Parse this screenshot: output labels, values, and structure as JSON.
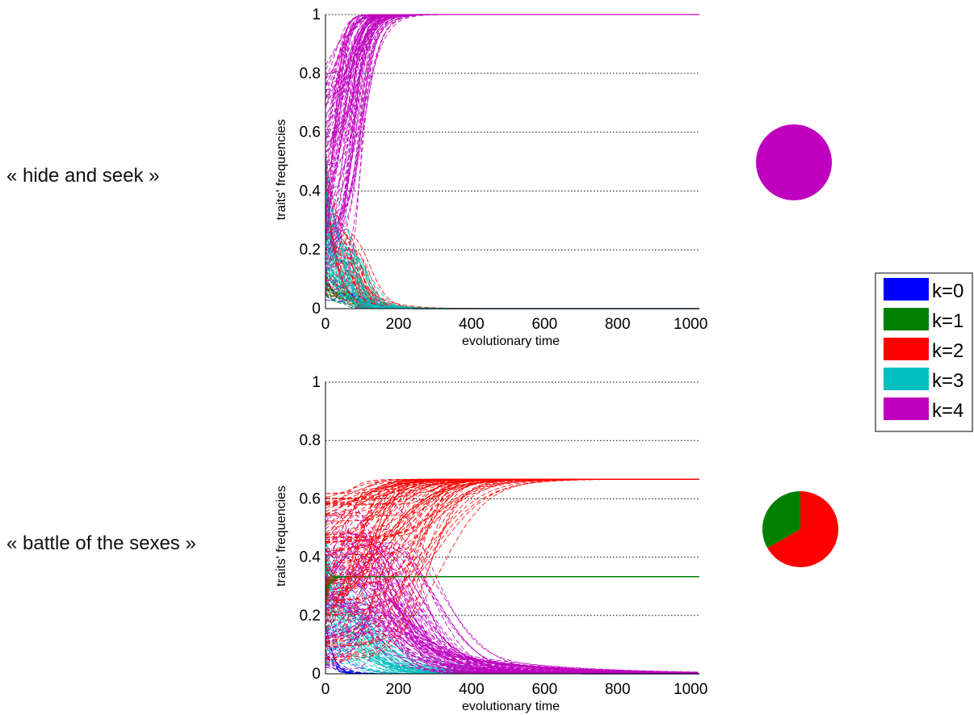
{
  "chart_data": [
    {
      "type": "line",
      "panel_label": "« hide and seek »",
      "xlabel": "evolutionary time",
      "ylabel": "traits' frequencies",
      "xlim": [
        0,
        1024
      ],
      "ylim": [
        0,
        1
      ],
      "xticks": [
        0,
        200,
        400,
        600,
        800,
        1000
      ],
      "yticks": [
        0,
        0.2,
        0.4,
        0.6,
        0.8,
        1
      ],
      "grid": "horizontal dotted",
      "line_style": "dashed, many trajectories per trait",
      "series": [
        {
          "name": "k=4",
          "color": "#bf00bf",
          "final_value": 1.0
        },
        {
          "name": "k=3",
          "color": "#00bfbf",
          "final_value": 0.0
        },
        {
          "name": "k=2",
          "color": "#ff0000",
          "final_value": 0.0
        },
        {
          "name": "k=1",
          "color": "#008000",
          "final_value": 0.0
        },
        {
          "name": "k=0",
          "color": "#0000ff",
          "final_value": 0.0
        }
      ],
      "equilibrium_pie": [
        {
          "name": "k=4",
          "value": 1.0,
          "color": "#bf00bf"
        }
      ]
    },
    {
      "type": "line",
      "panel_label": "« battle of the sexes »",
      "xlabel": "evolutionary time",
      "ylabel": "traits' frequencies",
      "xlim": [
        0,
        1024
      ],
      "ylim": [
        0,
        1
      ],
      "xticks": [
        0,
        200,
        400,
        600,
        800,
        1000
      ],
      "yticks": [
        0,
        0.2,
        0.4,
        0.6,
        0.8,
        1
      ],
      "grid": "horizontal dotted",
      "line_style": "dashed, many trajectories per trait",
      "series": [
        {
          "name": "k=2",
          "color": "#ff0000",
          "final_value": 0.667
        },
        {
          "name": "k=1",
          "color": "#008000",
          "final_value": 0.333
        },
        {
          "name": "k=4",
          "color": "#bf00bf",
          "final_value": 0.0
        },
        {
          "name": "k=3",
          "color": "#00bfbf",
          "final_value": 0.0
        },
        {
          "name": "k=0",
          "color": "#0000ff",
          "final_value": 0.0
        }
      ],
      "equilibrium_pie": [
        {
          "name": "k=2",
          "value": 0.667,
          "color": "#ff0000"
        },
        {
          "name": "k=1",
          "value": 0.333,
          "color": "#008000"
        }
      ]
    }
  ],
  "legend": {
    "placement": "right",
    "entries": [
      {
        "label": "k=0",
        "color": "#0000ff"
      },
      {
        "label": "k=1",
        "color": "#008000"
      },
      {
        "label": "k=2",
        "color": "#ff0000"
      },
      {
        "label": "k=3",
        "color": "#00bfbf"
      },
      {
        "label": "k=4",
        "color": "#bf00bf"
      }
    ]
  }
}
